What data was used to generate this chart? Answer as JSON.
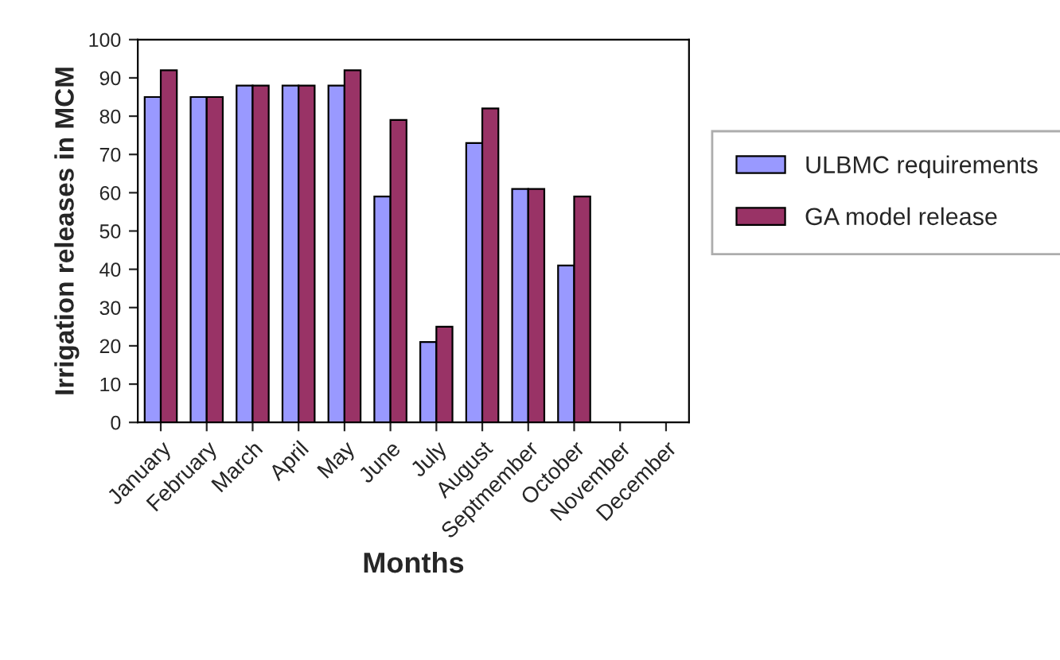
{
  "chart_data": {
    "type": "bar",
    "xlabel": "Months",
    "ylabel": "Irrigation releases in MCM",
    "categories": [
      "January",
      "February",
      "March",
      "April",
      "May",
      "June",
      "July",
      "August",
      "Septmember",
      "October",
      "November",
      "December"
    ],
    "series": [
      {
        "name": "ULBMC requirements",
        "color": "#9999ff",
        "values": [
          85,
          85,
          88,
          88,
          88,
          59,
          21,
          73,
          61,
          41,
          null,
          null
        ]
      },
      {
        "name": "GA model release",
        "color": "#993366",
        "values": [
          92,
          85,
          88,
          88,
          92,
          79,
          25,
          82,
          61,
          59,
          null,
          null
        ]
      }
    ],
    "ylim": [
      0,
      100
    ],
    "yticks": [
      0,
      10,
      20,
      30,
      40,
      50,
      60,
      70,
      80,
      90,
      100
    ],
    "legend": "right",
    "grid": false
  }
}
